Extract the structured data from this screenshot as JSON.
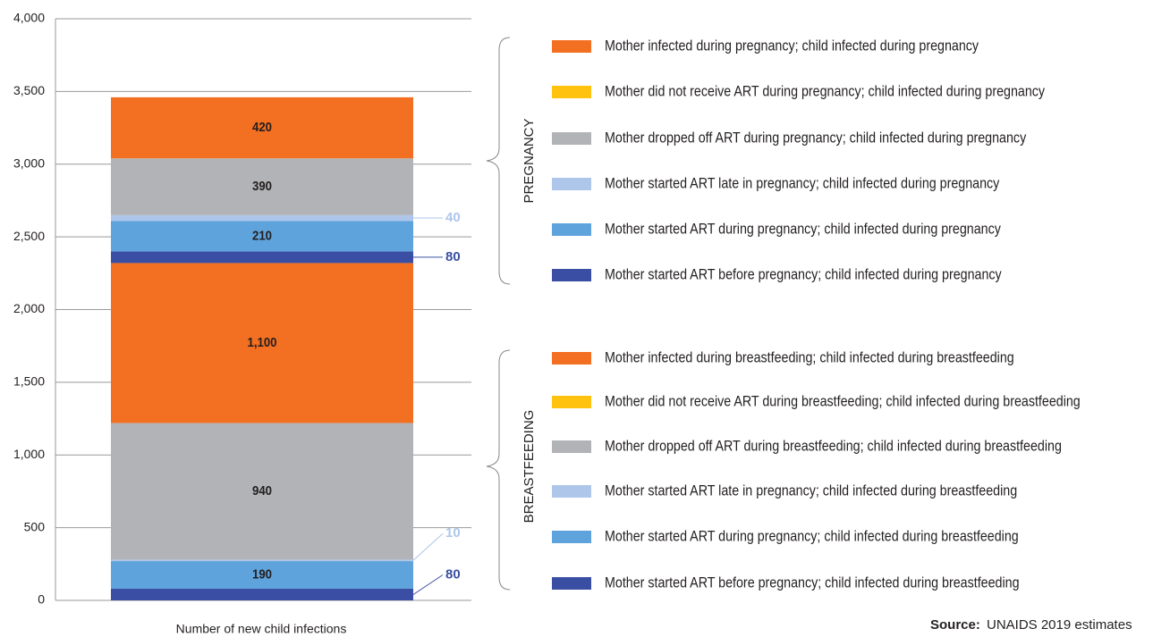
{
  "chart_data": {
    "type": "stacked_bar",
    "categories": [
      "Number of new child infections"
    ],
    "ylim": [
      0,
      4000
    ],
    "yticks": [
      0,
      500,
      {
        "value": 1000,
        "label": "1,000"
      },
      {
        "value": 1500,
        "label": "1,500"
      },
      {
        "value": 2000,
        "label": "2,000"
      },
      {
        "value": 2500,
        "label": "2,500"
      },
      {
        "value": 3000,
        "label": "3,000"
      },
      {
        "value": 3500,
        "label": "3,500"
      },
      {
        "value": 4000,
        "label": "4,000"
      }
    ],
    "grid": true,
    "groups": [
      "BREASTFEEDING",
      "PREGNANCY"
    ],
    "series": [
      {
        "name": "Mother started ART before pregnancy; child infected during breastfeeding",
        "color": "#3a4fa3",
        "values": [
          80
        ],
        "value_labels": [
          "80"
        ]
      },
      {
        "name": "Mother started ART during pregnancy; child infected during breastfeeding",
        "color": "#5ea3dc",
        "values": [
          190
        ],
        "value_labels": [
          "190"
        ]
      },
      {
        "name": "Mother started ART late in pregnancy; child infected during breastfeeding",
        "color": "#adc6e9",
        "values": [
          10
        ],
        "value_labels": [
          "10"
        ]
      },
      {
        "name": "Mother dropped off ART during breastfeeding; child infected during breastfeeding",
        "color": "#b1b3b6",
        "values": [
          940
        ],
        "value_labels": [
          "940"
        ]
      },
      {
        "name": "Mother did not receive ART during breastfeeding; child infected during breastfeeding",
        "color": "#ffc20e",
        "values": [
          0
        ],
        "value_labels": [
          null
        ]
      },
      {
        "name": "Mother infected during breastfeeding; child infected during breastfeeding",
        "color": "#f36f21",
        "values": [
          1100
        ],
        "value_labels": [
          "1,100"
        ]
      },
      {
        "name": "Mother started ART before pregnancy; child infected during pregnancy",
        "color": "#3a4fa3",
        "values": [
          80
        ],
        "value_labels": [
          "80"
        ]
      },
      {
        "name": "Mother started ART during pregnancy; child infected during pregnancy",
        "color": "#5ea3dc",
        "values": [
          210
        ],
        "value_labels": [
          "210"
        ]
      },
      {
        "name": "Mother started ART late in pregnancy; child infected during pregnancy",
        "color": "#adc6e9",
        "values": [
          40
        ],
        "value_labels": [
          "40"
        ]
      },
      {
        "name": "Mother dropped off ART during pregnancy; child infected during pregnancy",
        "color": "#b1b3b6",
        "values": [
          390
        ],
        "value_labels": [
          "390"
        ]
      },
      {
        "name": "Mother did not receive ART during pregnancy; child infected during pregnancy",
        "color": "#ffc20e",
        "values": [
          0
        ],
        "value_labels": [
          null
        ]
      },
      {
        "name": "Mother infected during pregnancy; child infected during pregnancy",
        "color": "#f36f21",
        "values": [
          420
        ],
        "value_labels": [
          "420"
        ]
      }
    ],
    "source_label": "Source:",
    "source": "UNAIDS 2019 estimates"
  }
}
